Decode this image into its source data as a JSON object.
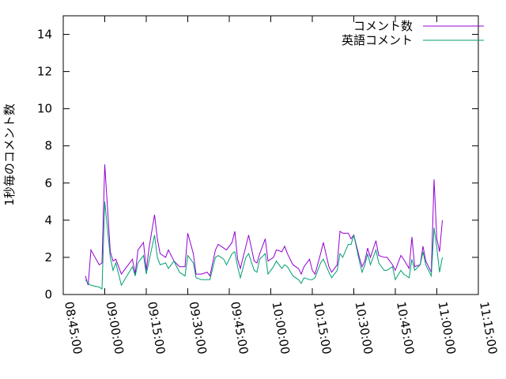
{
  "chart_data": {
    "type": "line",
    "y_label": "1秒毎のコメント数",
    "x": [
      "08:53:00",
      "08:54:00",
      "08:55:00",
      "08:58:00",
      "08:59:00",
      "09:00:00",
      "09:02:00",
      "09:03:00",
      "09:04:00",
      "09:06:00",
      "09:08:00",
      "09:10:00",
      "09:11:00",
      "09:12:00",
      "09:14:00",
      "09:15:00",
      "09:16:00",
      "09:18:00",
      "09:19:00",
      "09:20:00",
      "09:22:00",
      "09:23:00",
      "09:25:00",
      "09:27:00",
      "09:29:00",
      "09:30:00",
      "09:32:00",
      "09:33:00",
      "09:35:00",
      "09:37:00",
      "09:38:00",
      "09:40:00",
      "09:41:00",
      "09:43:00",
      "09:44:00",
      "09:46:00",
      "09:47:00",
      "09:48:00",
      "09:49:00",
      "09:51:00",
      "09:52:00",
      "09:54:00",
      "09:55:00",
      "09:56:00",
      "09:58:00",
      "09:59:00",
      "10:01:00",
      "10:02:00",
      "10:04:00",
      "10:05:00",
      "10:06:00",
      "10:08:00",
      "10:10:00",
      "10:11:00",
      "10:12:00",
      "10:14:00",
      "10:15:00",
      "10:16:00",
      "10:18:00",
      "10:19:00",
      "10:21:00",
      "10:22:00",
      "10:24:00",
      "10:25:00",
      "10:26:00",
      "10:28:00",
      "10:29:00",
      "10:30:00",
      "10:32:00",
      "10:33:00",
      "10:34:00",
      "10:35:00",
      "10:36:00",
      "10:38:00",
      "10:39:00",
      "10:41:00",
      "10:42:00",
      "10:44:00",
      "10:45:00",
      "10:47:00",
      "10:48:00",
      "10:50:00",
      "10:51:00",
      "10:52:00",
      "10:54:00",
      "10:55:00",
      "10:56:00",
      "10:58:00",
      "10:59:00",
      "11:00:00",
      "11:01:00",
      "11:02:00"
    ],
    "series": [
      {
        "name": "コメント数",
        "color": "#9400d3",
        "values": [
          1.0,
          0.5,
          2.4,
          1.6,
          1.7,
          7.0,
          2.3,
          1.8,
          1.9,
          1.1,
          1.5,
          1.9,
          1.1,
          2.4,
          2.8,
          1.3,
          2.5,
          4.3,
          3.0,
          2.2,
          2.0,
          2.4,
          1.8,
          1.5,
          1.5,
          3.3,
          2.2,
          1.1,
          1.1,
          1.2,
          1.0,
          2.4,
          2.7,
          2.5,
          2.4,
          2.8,
          3.4,
          1.9,
          1.4,
          2.6,
          3.2,
          1.8,
          1.7,
          2.2,
          3.0,
          1.8,
          2.0,
          2.4,
          2.3,
          2.6,
          2.2,
          1.6,
          1.4,
          1.1,
          1.5,
          1.9,
          1.3,
          1.1,
          2.2,
          2.8,
          1.5,
          1.2,
          1.6,
          3.4,
          3.3,
          3.3,
          3.0,
          3.2,
          2.0,
          1.5,
          1.8,
          2.5,
          2.0,
          2.9,
          2.1,
          2.0,
          2.0,
          1.6,
          1.3,
          2.1,
          1.9,
          1.4,
          3.1,
          1.5,
          1.6,
          2.6,
          1.8,
          1.2,
          6.2,
          3.0,
          2.3,
          4.0
        ]
      },
      {
        "name": "英語コメント",
        "color": "#009e73",
        "values": [
          0.8,
          0.6,
          0.5,
          0.4,
          0.3,
          5.0,
          2.0,
          1.3,
          1.7,
          0.5,
          1.0,
          1.5,
          1.0,
          1.7,
          2.1,
          1.1,
          1.8,
          3.2,
          2.0,
          1.6,
          1.7,
          1.4,
          1.8,
          1.2,
          1.0,
          2.1,
          1.7,
          0.9,
          0.8,
          0.8,
          0.8,
          2.0,
          2.1,
          1.9,
          1.6,
          2.2,
          2.3,
          1.5,
          0.9,
          2.0,
          2.2,
          1.3,
          1.2,
          1.9,
          2.2,
          1.1,
          1.5,
          1.8,
          1.4,
          1.6,
          1.5,
          1.0,
          0.8,
          0.6,
          0.9,
          0.8,
          0.8,
          0.9,
          1.7,
          1.9,
          1.2,
          0.9,
          1.3,
          2.2,
          2.0,
          2.7,
          2.7,
          3.2,
          1.8,
          1.2,
          1.6,
          2.2,
          1.6,
          2.4,
          1.7,
          1.3,
          1.3,
          1.5,
          0.8,
          1.3,
          1.1,
          0.9,
          1.9,
          1.3,
          1.6,
          2.3,
          1.6,
          1.0,
          3.6,
          2.5,
          1.2,
          2.0
        ]
      }
    ],
    "xlim": [
      "08:45:00",
      "11:15:00"
    ],
    "xticks": [
      "08:45:00",
      "09:00:00",
      "09:15:00",
      "09:30:00",
      "09:45:00",
      "10:00:00",
      "10:15:00",
      "10:30:00",
      "10:45:00",
      "11:00:00",
      "11:15:00"
    ],
    "ylim": [
      0,
      15
    ],
    "yticks": [
      0,
      2,
      4,
      6,
      8,
      10,
      12,
      14
    ],
    "legend": "top-right",
    "grid": false
  }
}
